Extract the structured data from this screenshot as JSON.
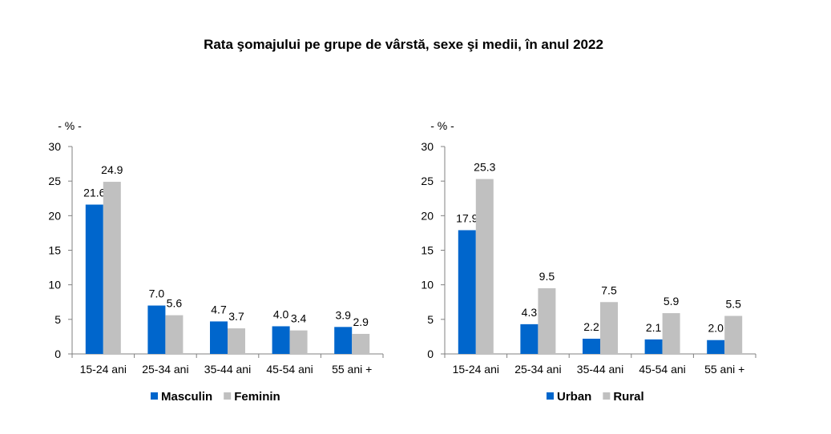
{
  "title": "Rata şomajului pe grupe de vârstă, sexe şi medii, în anul 2022",
  "colors": {
    "blue": "#0066CC",
    "gray": "#C0C0C0",
    "axis": "#808080"
  },
  "chart_data": [
    {
      "type": "bar",
      "unit_label": "- % -",
      "categories": [
        "15-24 ani",
        "25-34 ani",
        "35-44 ani",
        "45-54 ani",
        "55 ani +"
      ],
      "series": [
        {
          "name": "Masculin",
          "color": "#0066CC",
          "values": [
            21.6,
            7.0,
            4.7,
            4.0,
            3.9
          ]
        },
        {
          "name": "Feminin",
          "color": "#C0C0C0",
          "values": [
            24.9,
            5.6,
            3.7,
            3.4,
            2.9
          ]
        }
      ],
      "ylim": [
        0,
        30
      ],
      "yticks": [
        0,
        5,
        10,
        15,
        20,
        25,
        30
      ],
      "grid": false,
      "legend": "bottom"
    },
    {
      "type": "bar",
      "unit_label": "- % -",
      "categories": [
        "15-24 ani",
        "25-34 ani",
        "35-44 ani",
        "45-54 ani",
        "55 ani +"
      ],
      "series": [
        {
          "name": "Urban",
          "color": "#0066CC",
          "values": [
            17.9,
            4.3,
            2.2,
            2.1,
            2.0
          ]
        },
        {
          "name": "Rural",
          "color": "#C0C0C0",
          "values": [
            25.3,
            9.5,
            7.5,
            5.9,
            5.5
          ]
        }
      ],
      "ylim": [
        0,
        30
      ],
      "yticks": [
        0,
        5,
        10,
        15,
        20,
        25,
        30
      ],
      "grid": false,
      "legend": "bottom"
    }
  ]
}
